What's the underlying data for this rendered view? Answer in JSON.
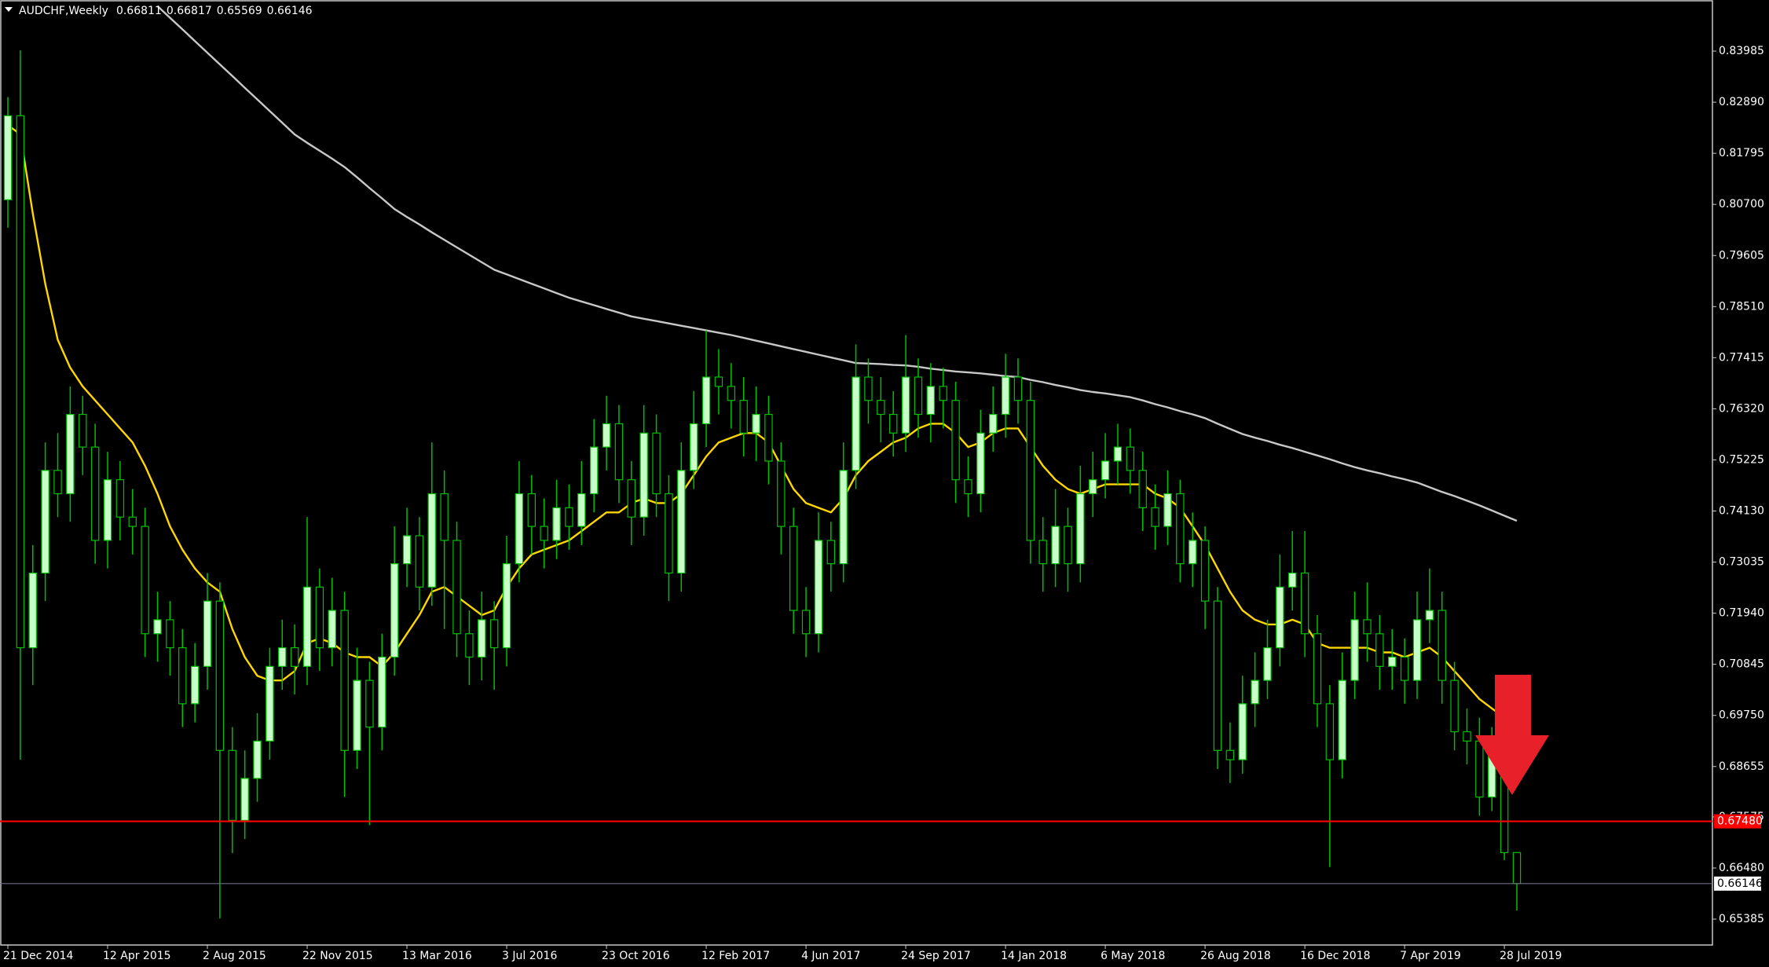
{
  "chart_data": {
    "type": "candlestick",
    "title": "AUDCHF,Weekly",
    "categories": [
      "21 Dec 2014",
      null,
      null,
      null,
      null,
      null,
      null,
      null,
      "12 Apr 2015",
      null,
      null,
      null,
      null,
      null,
      null,
      null,
      "2 Aug 2015",
      null,
      null,
      null,
      null,
      null,
      null,
      null,
      "22 Nov 2015",
      null,
      null,
      null,
      null,
      null,
      null,
      null,
      "13 Mar 2016",
      null,
      null,
      null,
      null,
      null,
      null,
      null,
      "3 Jul 2016",
      null,
      null,
      null,
      null,
      null,
      null,
      null,
      "23 Oct 2016",
      null,
      null,
      null,
      null,
      null,
      null,
      null,
      "12 Feb 2017",
      null,
      null,
      null,
      null,
      null,
      null,
      null,
      "4 Jun 2017",
      null,
      null,
      null,
      null,
      null,
      null,
      null,
      "24 Sep 2017",
      null,
      null,
      null,
      null,
      null,
      null,
      null,
      "14 Jan 2018",
      null,
      null,
      null,
      null,
      null,
      null,
      null,
      "6 May 2018",
      null,
      null,
      null,
      null,
      null,
      null,
      null,
      "26 Aug 2018",
      null,
      null,
      null,
      null,
      null,
      null,
      null,
      "16 Dec 2018",
      null,
      null,
      null,
      null,
      null,
      null,
      null,
      "7 Apr 2019",
      null,
      null,
      null,
      null,
      null,
      null,
      null,
      "28 Jul 2019",
      null
    ],
    "open": [
      0.808,
      0.826,
      0.712,
      0.728,
      0.75,
      0.745,
      0.762,
      0.755,
      0.735,
      0.748,
      0.74,
      0.738,
      0.715,
      0.718,
      0.712,
      0.7,
      0.708,
      0.722,
      0.69,
      0.675,
      0.684,
      0.692,
      0.708,
      0.712,
      0.708,
      0.725,
      0.712,
      0.72,
      0.69,
      0.705,
      0.695,
      0.71,
      0.73,
      0.736,
      0.725,
      0.745,
      0.735,
      0.715,
      0.71,
      0.718,
      0.712,
      0.73,
      0.745,
      0.738,
      0.735,
      0.742,
      0.738,
      0.745,
      0.755,
      0.76,
      0.748,
      0.74,
      0.758,
      0.745,
      0.728,
      0.75,
      0.76,
      0.77,
      0.768,
      0.765,
      0.758,
      0.762,
      0.752,
      0.738,
      0.72,
      0.715,
      0.735,
      0.73,
      0.75,
      0.77,
      0.765,
      0.762,
      0.758,
      0.77,
      0.762,
      0.768,
      0.765,
      0.748,
      0.745,
      0.758,
      0.762,
      0.77,
      0.765,
      0.735,
      0.73,
      0.738,
      0.73,
      0.745,
      0.748,
      0.752,
      0.755,
      0.75,
      0.742,
      0.738,
      0.745,
      0.73,
      0.735,
      0.722,
      0.69,
      0.688,
      0.7,
      0.705,
      0.712,
      0.725,
      0.728,
      0.715,
      0.7,
      0.688,
      0.705,
      0.718,
      0.715,
      0.708,
      0.71,
      0.705,
      0.718,
      0.72,
      0.705,
      0.694,
      0.692,
      0.68,
      0.69,
      0.66811
    ],
    "high": [
      0.83,
      0.84,
      0.734,
      0.756,
      0.758,
      0.768,
      0.766,
      0.76,
      0.754,
      0.752,
      0.746,
      0.742,
      0.724,
      0.722,
      0.716,
      0.713,
      0.728,
      0.726,
      0.695,
      0.69,
      0.698,
      0.712,
      0.718,
      0.717,
      0.74,
      0.729,
      0.727,
      0.724,
      0.712,
      0.709,
      0.715,
      0.738,
      0.742,
      0.74,
      0.756,
      0.75,
      0.739,
      0.72,
      0.724,
      0.722,
      0.736,
      0.752,
      0.749,
      0.744,
      0.748,
      0.747,
      0.752,
      0.761,
      0.766,
      0.764,
      0.752,
      0.764,
      0.762,
      0.749,
      0.756,
      0.767,
      0.78,
      0.776,
      0.773,
      0.77,
      0.768,
      0.766,
      0.756,
      0.742,
      0.725,
      0.741,
      0.739,
      0.756,
      0.777,
      0.774,
      0.77,
      0.767,
      0.779,
      0.774,
      0.773,
      0.772,
      0.769,
      0.753,
      0.763,
      0.768,
      0.775,
      0.774,
      0.769,
      0.74,
      0.746,
      0.742,
      0.751,
      0.754,
      0.758,
      0.76,
      0.759,
      0.754,
      0.747,
      0.75,
      0.748,
      0.741,
      0.738,
      0.725,
      0.696,
      0.706,
      0.711,
      0.718,
      0.732,
      0.737,
      0.737,
      0.719,
      0.704,
      0.711,
      0.724,
      0.726,
      0.719,
      0.716,
      0.714,
      0.724,
      0.729,
      0.724,
      0.709,
      0.699,
      0.697,
      0.695,
      0.692,
      0.66817
    ],
    "low": [
      0.802,
      0.688,
      0.704,
      0.722,
      0.74,
      0.739,
      0.749,
      0.73,
      0.729,
      0.735,
      0.732,
      0.71,
      0.709,
      0.706,
      0.695,
      0.696,
      0.703,
      0.654,
      0.668,
      0.671,
      0.679,
      0.688,
      0.703,
      0.702,
      0.704,
      0.707,
      0.708,
      0.68,
      0.686,
      0.674,
      0.69,
      0.706,
      0.725,
      0.72,
      0.721,
      0.716,
      0.71,
      0.704,
      0.705,
      0.703,
      0.708,
      0.726,
      0.732,
      0.729,
      0.731,
      0.733,
      0.734,
      0.741,
      0.75,
      0.743,
      0.734,
      0.736,
      0.74,
      0.722,
      0.724,
      0.746,
      0.755,
      0.762,
      0.759,
      0.753,
      0.752,
      0.747,
      0.732,
      0.715,
      0.71,
      0.711,
      0.724,
      0.726,
      0.746,
      0.76,
      0.756,
      0.753,
      0.754,
      0.757,
      0.756,
      0.759,
      0.743,
      0.74,
      0.741,
      0.754,
      0.757,
      0.76,
      0.73,
      0.724,
      0.725,
      0.724,
      0.726,
      0.74,
      0.744,
      0.747,
      0.745,
      0.737,
      0.733,
      0.734,
      0.726,
      0.725,
      0.716,
      0.686,
      0.683,
      0.685,
      0.695,
      0.701,
      0.708,
      0.72,
      0.71,
      0.695,
      0.665,
      0.684,
      0.701,
      0.709,
      0.703,
      0.703,
      0.7,
      0.701,
      0.713,
      0.7,
      0.69,
      0.687,
      0.676,
      0.677,
      0.6665,
      0.65569
    ],
    "close": [
      0.826,
      0.712,
      0.728,
      0.75,
      0.745,
      0.762,
      0.755,
      0.735,
      0.748,
      0.74,
      0.738,
      0.715,
      0.718,
      0.712,
      0.7,
      0.708,
      0.722,
      0.69,
      0.675,
      0.684,
      0.692,
      0.708,
      0.712,
      0.708,
      0.725,
      0.712,
      0.72,
      0.69,
      0.705,
      0.695,
      0.71,
      0.73,
      0.736,
      0.725,
      0.745,
      0.735,
      0.715,
      0.71,
      0.718,
      0.712,
      0.73,
      0.745,
      0.738,
      0.735,
      0.742,
      0.738,
      0.745,
      0.755,
      0.76,
      0.748,
      0.74,
      0.758,
      0.745,
      0.728,
      0.75,
      0.76,
      0.77,
      0.768,
      0.765,
      0.758,
      0.762,
      0.752,
      0.738,
      0.72,
      0.715,
      0.735,
      0.73,
      0.75,
      0.77,
      0.765,
      0.762,
      0.758,
      0.77,
      0.762,
      0.768,
      0.765,
      0.748,
      0.745,
      0.758,
      0.762,
      0.77,
      0.765,
      0.735,
      0.73,
      0.738,
      0.73,
      0.745,
      0.748,
      0.752,
      0.755,
      0.75,
      0.742,
      0.738,
      0.745,
      0.73,
      0.735,
      0.722,
      0.69,
      0.688,
      0.7,
      0.705,
      0.712,
      0.725,
      0.728,
      0.715,
      0.7,
      0.688,
      0.705,
      0.718,
      0.715,
      0.708,
      0.71,
      0.705,
      0.718,
      0.72,
      0.705,
      0.694,
      0.692,
      0.68,
      0.69,
      0.6681,
      0.66146
    ],
    "up_color": "#c8ffc8",
    "down_color": "#000000",
    "wick_color": "#00c000",
    "series": [
      {
        "color": "#ffd700",
        "values": [
          0.824,
          0.822,
          0.805,
          0.79,
          0.778,
          0.772,
          0.768,
          0.765,
          0.762,
          0.759,
          0.756,
          0.751,
          0.745,
          0.738,
          0.733,
          0.729,
          0.726,
          0.724,
          0.716,
          0.71,
          0.706,
          0.705,
          0.705,
          0.707,
          0.713,
          0.714,
          0.713,
          0.711,
          0.71,
          0.71,
          0.708,
          0.711,
          0.715,
          0.719,
          0.724,
          0.725,
          0.723,
          0.721,
          0.719,
          0.72,
          0.725,
          0.729,
          0.732,
          0.733,
          0.734,
          0.735,
          0.737,
          0.739,
          0.741,
          0.741,
          0.743,
          0.744,
          0.743,
          0.743,
          0.745,
          0.749,
          0.753,
          0.756,
          0.757,
          0.758,
          0.758,
          0.756,
          0.751,
          0.746,
          0.743,
          0.742,
          0.741,
          0.744,
          0.749,
          0.752,
          0.754,
          0.756,
          0.757,
          0.759,
          0.76,
          0.76,
          0.758,
          0.755,
          0.756,
          0.758,
          0.759,
          0.759,
          0.755,
          0.751,
          0.748,
          0.746,
          0.745,
          0.746,
          0.747,
          0.747,
          0.747,
          0.747,
          0.745,
          0.744,
          0.742,
          0.738,
          0.734,
          0.729,
          0.724,
          0.72,
          0.718,
          0.717,
          0.717,
          0.718,
          0.717,
          0.713,
          0.712,
          0.712,
          0.712,
          0.712,
          0.711,
          0.711,
          0.71,
          0.711,
          0.712,
          0.71,
          0.707,
          0.704,
          0.701,
          0.699,
          0.697,
          null
        ]
      },
      {
        "color": "#c8c8c8",
        "values": [
          null,
          null,
          null,
          null,
          null,
          null,
          null,
          null,
          null,
          null,
          null,
          null,
          0.8495,
          0.847,
          0.8445,
          0.842,
          0.8395,
          0.837,
          0.8345,
          0.832,
          0.8295,
          0.827,
          0.8245,
          0.822,
          0.8202,
          0.8185,
          0.8168,
          0.815,
          0.8128,
          0.8105,
          0.8083,
          0.806,
          0.8043,
          0.8027,
          0.801,
          0.7994,
          0.7978,
          0.7962,
          0.7946,
          0.793,
          0.792,
          0.791,
          0.79,
          0.789,
          0.788,
          0.787,
          0.7862,
          0.7854,
          0.7846,
          0.7838,
          0.783,
          0.7825,
          0.782,
          0.7815,
          0.781,
          0.7805,
          0.78,
          0.7795,
          0.779,
          0.7784,
          0.7778,
          0.7772,
          0.7766,
          0.776,
          0.7754,
          0.7748,
          0.7742,
          0.7736,
          0.773,
          0.7729,
          0.7728,
          0.7726,
          0.7725,
          0.7722,
          0.7718,
          0.7715,
          0.7712,
          0.771,
          0.7708,
          0.7705,
          0.7702,
          0.77,
          0.7694,
          0.7689,
          0.7683,
          0.7678,
          0.7672,
          0.7668,
          0.7665,
          0.7661,
          0.7657,
          0.765,
          0.7642,
          0.7635,
          0.7627,
          0.762,
          0.7612,
          0.76,
          0.7589,
          0.7578,
          0.757,
          0.7563,
          0.7555,
          0.7548,
          0.754,
          0.7532,
          0.7524,
          0.7515,
          0.7507,
          0.75,
          0.7494,
          0.7487,
          0.7481,
          0.7474,
          0.7464,
          0.7454,
          0.7445,
          0.7435,
          0.7425,
          0.7414,
          0.7403,
          0.7392
        ]
      }
    ],
    "ylim": [
      0.6483,
      0.8508
    ],
    "yticks": [
      0.83985,
      {
        "value": 0.8289,
        "label": "0.82890"
      },
      0.81795,
      {
        "value": 0.807,
        "label": "0.80700"
      },
      0.79605,
      {
        "value": 0.7851,
        "label": "0.78510"
      },
      0.77415,
      {
        "value": 0.7632,
        "label": "0.76320"
      },
      0.75225,
      {
        "value": 0.7413,
        "label": "0.74130"
      },
      0.73035,
      {
        "value": 0.7194,
        "label": "0.71940"
      },
      0.70845,
      {
        "value": 0.6975,
        "label": "0.69750"
      },
      0.68655,
      0.67575,
      {
        "value": 0.6648,
        "label": "0.66480"
      },
      0.65385
    ],
    "hline": {
      "value": 0.6748,
      "label": "0.67480",
      "color": "#ff0000"
    },
    "price_line_color": "#6e6e82"
  }
}
